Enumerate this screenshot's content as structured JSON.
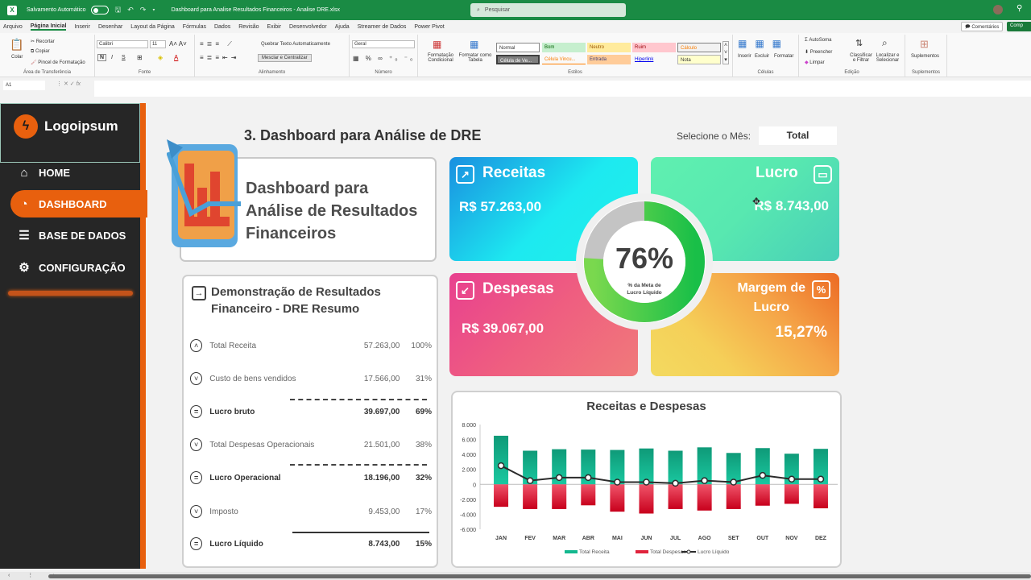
{
  "titlebar": {
    "autosave_label": "Salvamento Automático",
    "file_title": "Dashboard para Analise Resultados Financeiros - Analise DRE.xlsx",
    "search_placeholder": "Pesquisar"
  },
  "menu": {
    "items": [
      "Arquivo",
      "Página Inicial",
      "Inserir",
      "Desenhar",
      "Layout da Página",
      "Fórmulas",
      "Dados",
      "Revisão",
      "Exibir",
      "Desenvolvedor",
      "Ajuda",
      "Streamer de Dados",
      "Power Pivot"
    ],
    "active": "Página Inicial",
    "comments_label": "Comentários",
    "share_label": "Comp"
  },
  "ribbon": {
    "clipboard": {
      "paste": "Colar",
      "cut": "Recortar",
      "copy": "Copiar",
      "painter": "Pincel de Formatação",
      "group": "Área de Transferência"
    },
    "font": {
      "name": "Calibri",
      "size": "11",
      "bold": "N",
      "italic": "I",
      "underline": "S",
      "group": "Fonte"
    },
    "alignment": {
      "wrap": "Quebrar Texto Automaticamente",
      "merge": "Mesclar e Centralizar",
      "group": "Alinhamento"
    },
    "number": {
      "format": "Geral",
      "group": "Número"
    },
    "styles": {
      "cond_format": "Formatação Condicional",
      "format_table": "Formatar como Tabela",
      "cells": [
        "Normal",
        "Bom",
        "Neutro",
        "Ruim",
        "Cálculo",
        "Célula de Ve...",
        "Célula Vincu...",
        "Entrada",
        "Hiperlink",
        "Nota"
      ],
      "group": "Estilos"
    },
    "cells": {
      "insert": "Inserir",
      "delete": "Excluir",
      "format": "Formatar",
      "group": "Células"
    },
    "editing": {
      "autosum": "AutoSoma",
      "fill": "Preencher",
      "clear": "Limpar",
      "sort": "Classificar e Filtrar",
      "find": "Localizar e Selecionar",
      "group": "Edição"
    },
    "addins": {
      "label": "Suplementos",
      "group": "Suplementos"
    }
  },
  "formula_bar": {
    "name_box": "A1",
    "fx": "fx",
    "value": ""
  },
  "sidebar": {
    "logo": "Logoipsum",
    "items": [
      {
        "label": "HOME",
        "icon": "home-icon"
      },
      {
        "label": "DASHBOARD",
        "icon": "pie-chart-icon",
        "active": true
      },
      {
        "label": "BASE DE DADOS",
        "icon": "database-icon"
      },
      {
        "label": "CONFIGURAÇÃO",
        "icon": "gear-icon"
      }
    ]
  },
  "header": {
    "title": "3. Dashboard para Análise de DRE",
    "month_label": "Selecione o Mês:",
    "month_value": "Total"
  },
  "hero": {
    "line1": "Dashboard para",
    "line2": "Análise de Resultados",
    "line3": "Financeiros"
  },
  "dre": {
    "title_line1": "Demonstração de Resultados",
    "title_line2": "Financeiro - DRE Resumo",
    "rows": [
      {
        "label": "Total Receita",
        "value": "57.263,00",
        "pct": "100%",
        "icon": "up"
      },
      {
        "label": "Custo de bens vendidos",
        "value": "17.566,00",
        "pct": "31%",
        "icon": "down"
      },
      {
        "label": "Lucro bruto",
        "value": "39.697,00",
        "pct": "69%",
        "icon": "equals"
      },
      {
        "label": "Total Despesas Operacionais",
        "value": "21.501,00",
        "pct": "38%",
        "icon": "down"
      },
      {
        "label": "Lucro Operacional",
        "value": "18.196,00",
        "pct": "32%",
        "icon": "equals"
      },
      {
        "label": "Imposto",
        "value": "9.453,00",
        "pct": "17%",
        "icon": "down"
      },
      {
        "label": "Lucro Líquido",
        "value": "8.743,00",
        "pct": "15%",
        "icon": "equals"
      }
    ]
  },
  "kpis": {
    "receitas": {
      "title": "Receitas",
      "value": "R$ 57.263,00"
    },
    "lucro": {
      "title": "Lucro",
      "value": "R$ 8.743,00"
    },
    "despesas": {
      "title": "Despesas",
      "value": "R$ 39.067,00"
    },
    "margem": {
      "title_line1": "Margem de",
      "title_line2": "Lucro",
      "value": "15,27%"
    }
  },
  "gauge": {
    "value": "76%",
    "percent": 76,
    "sub1": "% da Meta de",
    "sub2": "Lucro Líquido"
  },
  "colors": {
    "excel_green": "#1a8b44",
    "orange": "#e8600e",
    "sidebar": "#262626",
    "receita_bar": "#14b88f",
    "despesa_bar": "#e0233c",
    "gauge_green": "#4fcf4f",
    "gauge_gray": "#c4c4c4"
  },
  "chart_data": {
    "type": "bar",
    "title": "Receitas e Despesas",
    "categories": [
      "JAN",
      "FEV",
      "MAR",
      "ABR",
      "MAI",
      "JUN",
      "JUL",
      "AGO",
      "SET",
      "OUT",
      "NOV",
      "DEZ"
    ],
    "series": [
      {
        "name": "Total Receita",
        "type": "bar",
        "values": [
          6500,
          4500,
          4700,
          4650,
          4600,
          4800,
          4500,
          4950,
          4200,
          4850,
          4100,
          4750
        ]
      },
      {
        "name": "Total Despesas",
        "type": "bar",
        "values": [
          -3000,
          -3300,
          -3300,
          -2800,
          -3650,
          -3900,
          -3300,
          -3500,
          -3300,
          -2850,
          -2600,
          -3200
        ]
      },
      {
        "name": "Lucro Líquido",
        "type": "line",
        "values": [
          2500,
          500,
          900,
          900,
          300,
          300,
          150,
          500,
          300,
          1200,
          700,
          700
        ]
      }
    ],
    "yticks": [
      "8.000",
      "6.000",
      "4.000",
      "2.000",
      "0",
      "-2.000",
      "-4.000",
      "-6.000"
    ],
    "ylim": [
      -6000,
      8000
    ],
    "legend_position": "bottom",
    "grid": false
  }
}
